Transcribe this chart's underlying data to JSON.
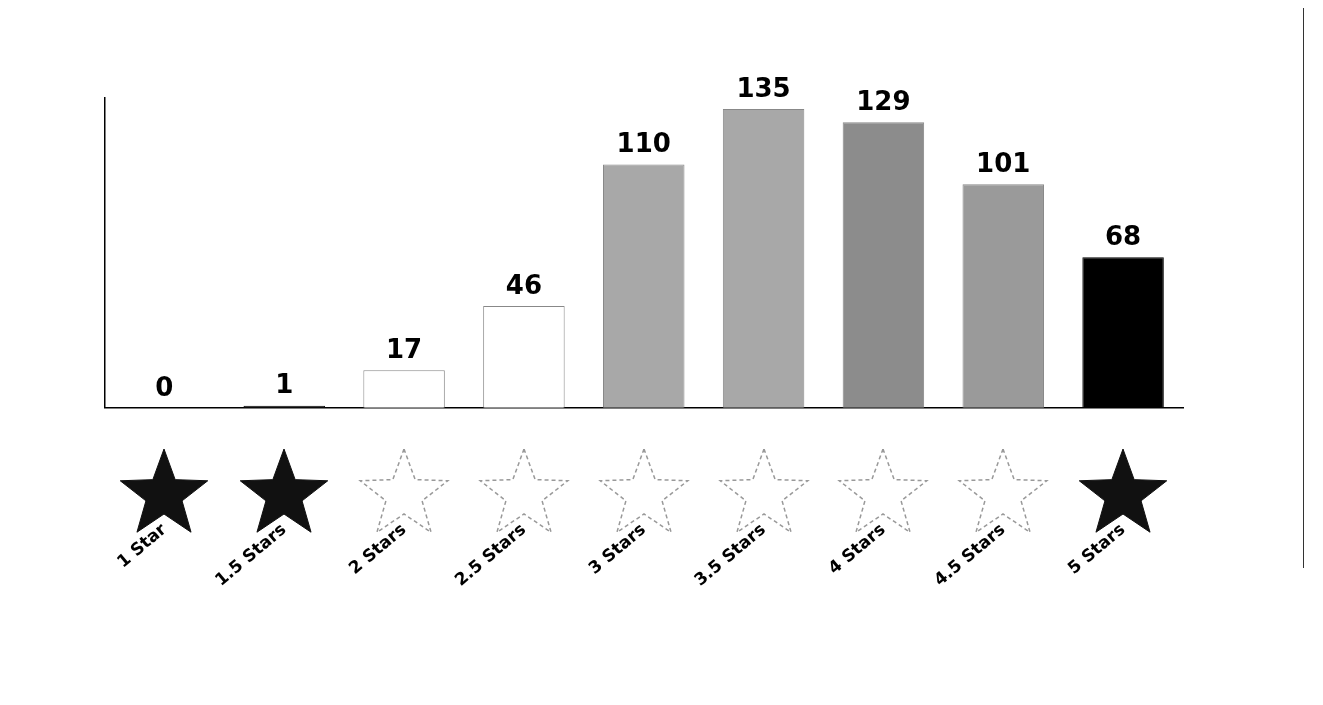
{
  "chart_data": {
    "type": "bar",
    "categories": [
      "1 Star",
      "1.5 Stars",
      "2 Stars",
      "2.5 Stars",
      "3 Stars",
      "3.5 Stars",
      "4 Stars",
      "4.5 Stars",
      "5 Stars"
    ],
    "values": [
      0,
      1,
      17,
      46,
      110,
      135,
      129,
      101,
      68
    ],
    "colors": [
      "#111111",
      "#111111",
      "#ffffff",
      "#ffffff",
      "#a8a8a8",
      "#a8a8a8",
      "#8c8c8c",
      "#9a9a9a",
      "#000000"
    ],
    "data_labels": true,
    "grid": false,
    "legend": false,
    "tick_labels": "x"
  }
}
